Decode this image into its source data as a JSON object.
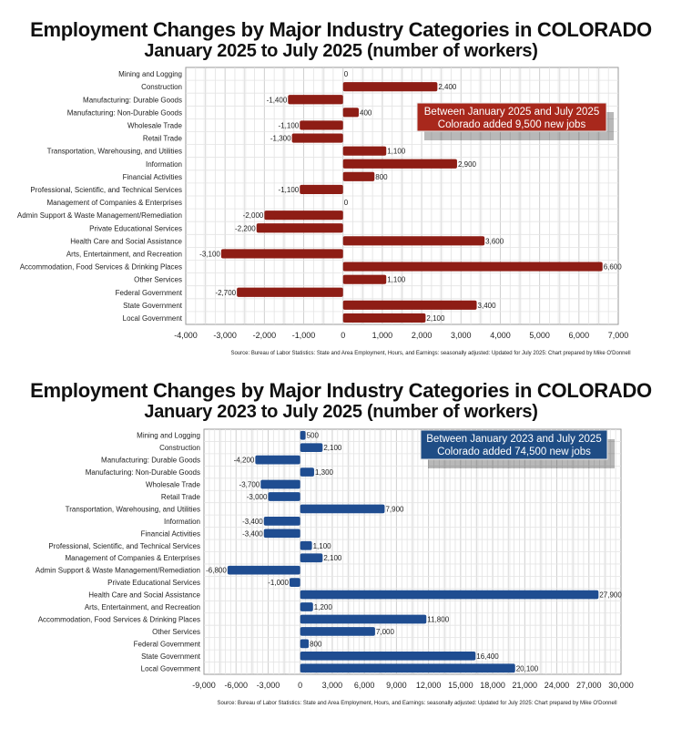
{
  "chart_data": [
    {
      "type": "bar",
      "orientation": "horizontal",
      "title": "Employment Changes by Major Industry Categories in COLORADO",
      "subtitle": "January 2025 to July 2025 (number of workers)",
      "categories": [
        "Mining and Logging",
        "Construction",
        "Manufacturing: Durable Goods",
        "Manufacturing: Non-Durable Goods",
        "Wholesale Trade",
        "Retail Trade",
        "Transportation, Warehousing, and Utilities",
        "Information",
        "Financial Activities",
        "Professional, Scientific, and Technical Services",
        "Management of Companies & Enterprises",
        "Admin Support & Waste Management/Remediation",
        "Private Educational Services",
        "Health Care and Social Assistance",
        "Arts, Entertainment, and Recreation",
        "Accommodation, Food Services & Drinking Places",
        "Other Services",
        "Federal Government",
        "State Government",
        "Local Government"
      ],
      "values": [
        0,
        2400,
        -1400,
        400,
        -1100,
        -1300,
        1100,
        2900,
        800,
        -1100,
        0,
        -2000,
        -2200,
        3600,
        -3100,
        6600,
        1100,
        -2700,
        3400,
        2100
      ],
      "value_labels": [
        "0",
        "2,400",
        "-1,400",
        "400",
        "-1,100",
        "-1,300",
        "1,100",
        "2,900",
        "800",
        "-1,100",
        "0",
        "-2,000",
        "-2,200",
        "3,600",
        "-3,100",
        "6,600",
        "1,100",
        "-2,700",
        "3,400",
        "2,100"
      ],
      "xlim": [
        -4000,
        7000
      ],
      "xticks": [
        -4000,
        -3000,
        -2000,
        -1000,
        0,
        1000,
        2000,
        3000,
        4000,
        5000,
        6000,
        7000
      ],
      "xtick_labels": [
        "-4,000",
        "-3,000",
        "-2,000",
        "-1,000",
        "0",
        "1,000",
        "2,000",
        "3,000",
        "4,000",
        "5,000",
        "6,000",
        "7,000"
      ],
      "xlabel": "",
      "ylabel": "",
      "grid": true,
      "bar_color": "#8e1d15",
      "annotation": {
        "lines": [
          "Between January 2025 and July 2025",
          "Colorado added 9,500 new jobs"
        ],
        "bg_color": "#a8281c",
        "placement": "upper-right"
      },
      "source": "Source: Bureau of Labor Statistics: State and Area Employment, Hours, and Earnings: seasonally adjusted: Updated for July 2025: Chart prepared by Mike O'Donnell"
    },
    {
      "type": "bar",
      "orientation": "horizontal",
      "title": "Employment Changes by Major Industry Categories in COLORADO",
      "subtitle": "January 2023 to July 2025 (number of workers)",
      "categories": [
        "Mining and Logging",
        "Construction",
        "Manufacturing: Durable Goods",
        "Manufacturing: Non-Durable Goods",
        "Wholesale Trade",
        "Retail Trade",
        "Transportation, Warehousing, and Utilities",
        "Information",
        "Financial Activities",
        "Professional, Scientific, and Technical Services",
        "Management of Companies & Enterprises",
        "Admin Support & Waste Management/Remediation",
        "Private Educational Services",
        "Health Care and Social Assistance",
        "Arts, Entertainment, and Recreation",
        "Accommodation, Food Services & Drinking Places",
        "Other Services",
        "Federal Government",
        "State Government",
        "Local Government"
      ],
      "values": [
        500,
        2100,
        -4200,
        1300,
        -3700,
        -3000,
        7900,
        -3400,
        -3400,
        1100,
        2100,
        -6800,
        -1000,
        27900,
        1200,
        11800,
        7000,
        800,
        16400,
        20100
      ],
      "value_labels": [
        "500",
        "2,100",
        "-4,200",
        "1,300",
        "-3,700",
        "-3,000",
        "7,900",
        "-3,400",
        "-3,400",
        "1,100",
        "2,100",
        "-6,800",
        "-1,000",
        "27,900",
        "1,200",
        "11,800",
        "7,000",
        "800",
        "16,400",
        "20,100"
      ],
      "xlim": [
        -9000,
        30000
      ],
      "xticks": [
        -9000,
        -6000,
        -3000,
        0,
        3000,
        6000,
        9000,
        12000,
        15000,
        18000,
        21000,
        24000,
        27000,
        30000
      ],
      "xtick_labels": [
        "-9,000",
        "-6,000",
        "-3,000",
        "0",
        "3,000",
        "6,000",
        "9,000",
        "12,000",
        "15,000",
        "18,000",
        "21,000",
        "24,000",
        "27,000",
        "30,000"
      ],
      "xlabel": "",
      "ylabel": "",
      "grid": true,
      "bar_color": "#1f4d91",
      "annotation": {
        "lines": [
          "Between January 2023 and July 2025",
          "Colorado added 74,500 new jobs"
        ],
        "bg_color": "#1f4d85",
        "placement": "top-right"
      },
      "source": "Source: Bureau of Labor Statistics: State and Area Employment, Hours, and Earnings: seasonally adjusted: Updated for July 2025: Chart prepared by Mike O'Donnell"
    }
  ]
}
